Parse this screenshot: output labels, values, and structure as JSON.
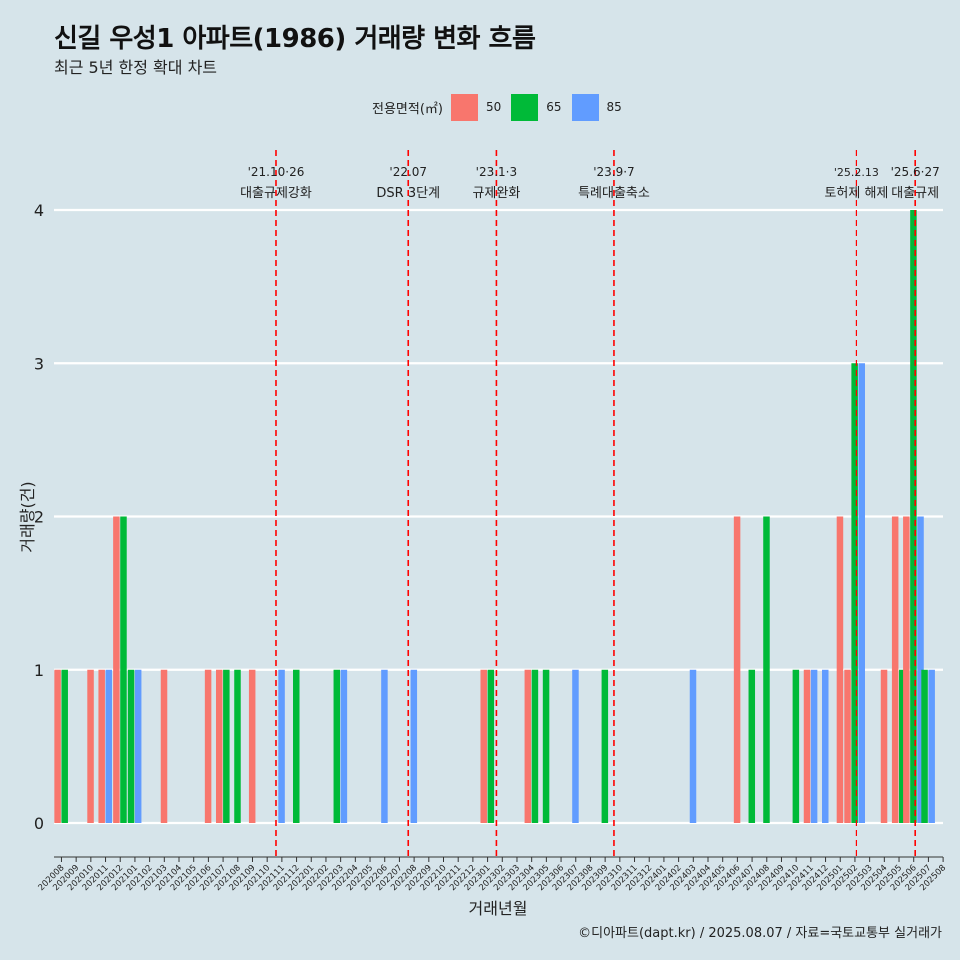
{
  "title": "신길 우성1 아파트(1986) 거래량 변화 흐름",
  "subtitle": "최근 5년 한정 확대 차트",
  "caption": "©디아파트(dapt.kr) / 2025.08.07 / 자료=국토교통부 실거래가",
  "colors": {
    "background": "#d6e4ea",
    "s50": "#f8766d",
    "s65": "#00ba38",
    "s85": "#619cff",
    "event_line": "#ff0000"
  },
  "chart_data": {
    "type": "bar",
    "title": "신길 우성1 아파트(1986) 거래량 변화 흐름",
    "subtitle": "최근 5년 한정 확대 차트",
    "xlabel": "거래년월",
    "ylabel": "거래량(건)",
    "ylim": [
      0,
      4
    ],
    "yticks": [
      0,
      1,
      2,
      3,
      4
    ],
    "grid": "horizontal",
    "legend_title": "전용면적(㎡)",
    "legend_position": "top",
    "categories": [
      "202008",
      "202009",
      "202010",
      "202011",
      "202012",
      "202101",
      "202102",
      "202103",
      "202104",
      "202105",
      "202106",
      "202107",
      "202108",
      "202109",
      "202110",
      "202111",
      "202112",
      "202201",
      "202202",
      "202203",
      "202204",
      "202205",
      "202206",
      "202207",
      "202208",
      "202209",
      "202210",
      "202211",
      "202212",
      "202301",
      "202302",
      "202303",
      "202304",
      "202305",
      "202306",
      "202307",
      "202308",
      "202309",
      "202310",
      "202311",
      "202312",
      "202401",
      "202402",
      "202403",
      "202404",
      "202405",
      "202406",
      "202407",
      "202408",
      "202409",
      "202410",
      "202411",
      "202412",
      "202501",
      "202502",
      "202503",
      "202504",
      "202505",
      "202506",
      "202507",
      "202508"
    ],
    "series": [
      {
        "name": "50",
        "points": [
          [
            "202008",
            1
          ],
          [
            "202010",
            1
          ],
          [
            "202011",
            1
          ],
          [
            "202012",
            2
          ],
          [
            "202103",
            1
          ],
          [
            "202106",
            1
          ],
          [
            "202107",
            1
          ],
          [
            "202109",
            1
          ],
          [
            "202301",
            1
          ],
          [
            "202304",
            1
          ],
          [
            "202406",
            2
          ],
          [
            "202411",
            1
          ],
          [
            "202501",
            2
          ],
          [
            "202502",
            1
          ],
          [
            "202504",
            1
          ],
          [
            "202505",
            2
          ],
          [
            "202506",
            2
          ]
        ]
      },
      {
        "name": "65",
        "points": [
          [
            "202008",
            1
          ],
          [
            "202012",
            2
          ],
          [
            "202101",
            1
          ],
          [
            "202107",
            1
          ],
          [
            "202108",
            1
          ],
          [
            "202112",
            1
          ],
          [
            "202203",
            1
          ],
          [
            "202301",
            1
          ],
          [
            "202304",
            1
          ],
          [
            "202305",
            1
          ],
          [
            "202309",
            1
          ],
          [
            "202407",
            1
          ],
          [
            "202408",
            2
          ],
          [
            "202410",
            1
          ],
          [
            "202502",
            3
          ],
          [
            "202505",
            1
          ],
          [
            "202506",
            4
          ],
          [
            "202507",
            1
          ]
        ]
      },
      {
        "name": "85",
        "points": [
          [
            "202011",
            1
          ],
          [
            "202101",
            1
          ],
          [
            "202111",
            1
          ],
          [
            "202203",
            1
          ],
          [
            "202206",
            1
          ],
          [
            "202208",
            1
          ],
          [
            "202307",
            1
          ],
          [
            "202403",
            1
          ],
          [
            "202411",
            1
          ],
          [
            "202412",
            1
          ],
          [
            "202502",
            3
          ],
          [
            "202506",
            2
          ],
          [
            "202507",
            1
          ]
        ]
      }
    ],
    "events": [
      {
        "date": "'21.10·26",
        "label": "대출규제강화",
        "at": 14.6
      },
      {
        "date": "'22.07",
        "label": "DSR 3단계",
        "at": 23.6
      },
      {
        "date": "'23.1·3",
        "label": "규제완화",
        "at": 29.6
      },
      {
        "date": "'23.9·7",
        "label": "특례대출축소",
        "at": 37.6
      },
      {
        "date": "'25.2.13",
        "label": "토허제 해제",
        "at": 54.1
      },
      {
        "date": "'25.6·27",
        "label": "대출규제",
        "at": 58.1
      }
    ]
  }
}
